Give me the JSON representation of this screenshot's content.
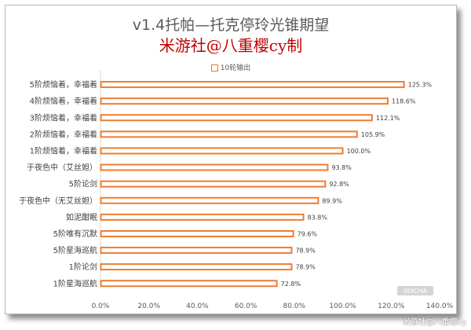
{
  "chart_data": {
    "type": "bar",
    "orientation": "horizontal",
    "title": "v1.4托帕—托克停玲光锥期望",
    "subtitle": "米游社@八重樱cy制",
    "legend_position": "top",
    "categories": [
      "5阶烦恼着，幸福着",
      "4阶烦恼着，幸福着",
      "3阶烦恼着，幸福着",
      "2阶烦恼着，幸福着",
      "1阶烦恼着，幸福着",
      "于夜色中（艾丝妲）",
      "5阶论剑",
      "于夜色中（无艾丝妲）",
      "如泥酣眠",
      "5阶唯有沉默",
      "5阶星海巡航",
      "1阶论剑",
      "1阶星海巡航"
    ],
    "series": [
      {
        "name": "10轮输出",
        "values": [
          125.3,
          118.6,
          112.1,
          105.9,
          100.0,
          93.8,
          92.8,
          89.9,
          83.8,
          79.6,
          78.9,
          78.9,
          72.8
        ],
        "labels": [
          "125.3%",
          "118.6%",
          "112.1%",
          "105.9%",
          "100.0%",
          "93.8%",
          "92.8%",
          "89.9%",
          "83.8%",
          "79.6%",
          "78.9%",
          "78.9%",
          "72.8%"
        ],
        "color": "#ed7d31"
      }
    ],
    "xlim": [
      0,
      140
    ],
    "x_ticks": [
      "0.0%",
      "20.0%",
      "40.0%",
      "60.0%",
      "80.0%",
      "100.0%",
      "120.0%",
      "140.0%"
    ],
    "x_tick_values": [
      0,
      20,
      40,
      60,
      80,
      100,
      120,
      140
    ],
    "grid": false
  },
  "watermark": {
    "brand_text": "WXCHA",
    "caption": "米游社@八重樱cy"
  }
}
